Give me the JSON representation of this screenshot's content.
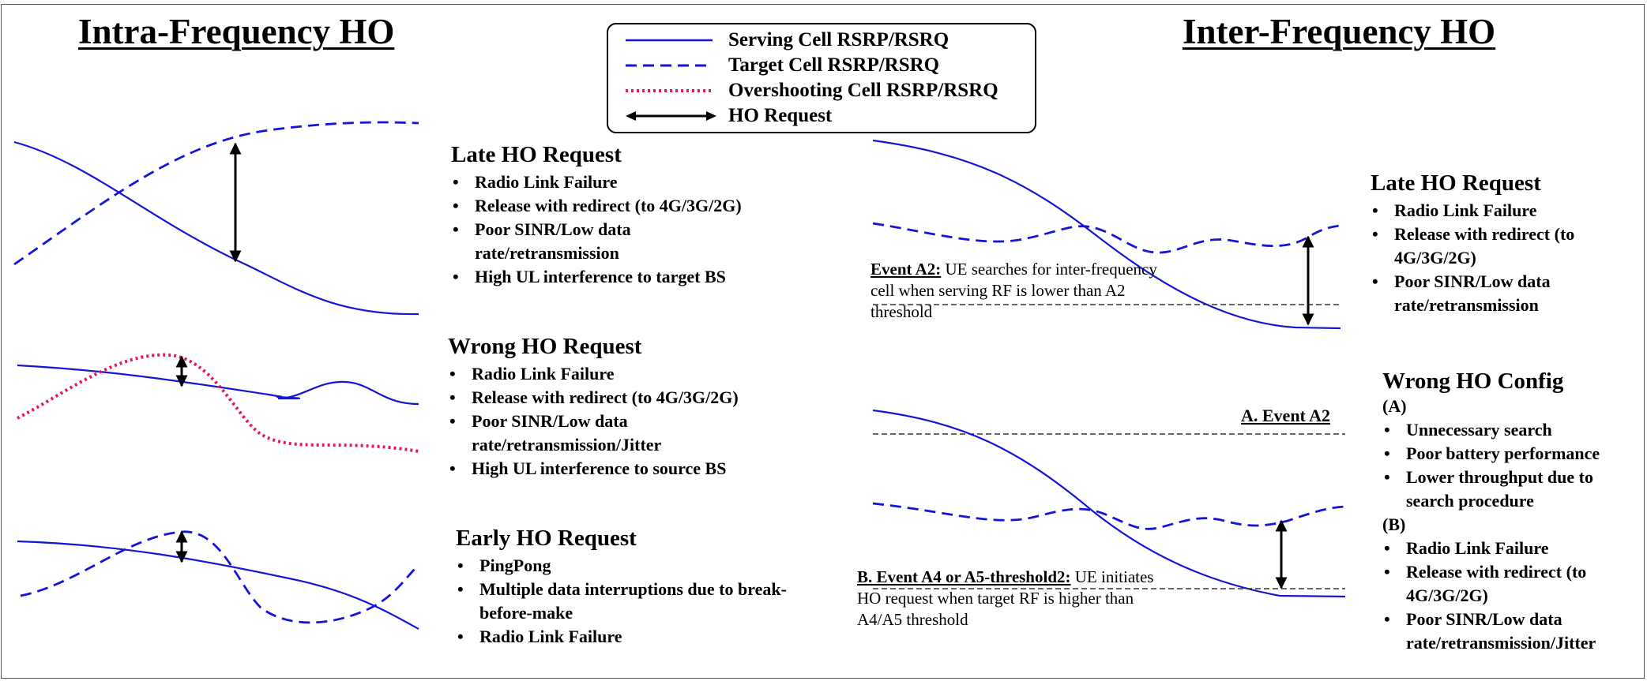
{
  "titles": {
    "intra": "Intra-Frequency HO",
    "inter": "Inter-Frequency HO"
  },
  "legend": {
    "serving": "Serving Cell RSRP/RSRQ",
    "target": "Target Cell RSRP/RSRQ",
    "overshooting": "Overshooting Cell RSRP/RSRQ",
    "ho_request": "HO Request"
  },
  "colors": {
    "serving": "#1515d6",
    "target": "#1515d6",
    "overshooting": "#e8175d",
    "arrow": "#000000",
    "threshold": "#333333"
  },
  "intra": {
    "late": {
      "heading": "Late HO Request",
      "items": [
        "Radio Link Failure",
        "Release with redirect (to 4G/3G/2G)",
        "Poor SINR/Low data rate/retransmission",
        "High UL interference to target BS"
      ]
    },
    "wrong": {
      "heading": "Wrong  HO Request",
      "items": [
        "Radio Link Failure",
        "Release with redirect (to 4G/3G/2G)",
        "Poor SINR/Low data rate/retransmission/Jitter",
        "High UL interference to source BS"
      ]
    },
    "early": {
      "heading": "Early HO Request",
      "items": [
        "PingPong",
        "Multiple data interruptions due to break-before-make",
        "Radio Link Failure"
      ]
    }
  },
  "inter": {
    "late": {
      "heading": "Late HO Request",
      "items": [
        "Radio Link Failure",
        "Release with redirect (to 4G/3G/2G)",
        "Poor SINR/Low data rate/retransmission"
      ]
    },
    "wrong": {
      "heading": "Wrong  HO Config",
      "group_a": "(A)",
      "items_a": [
        "Unnecessary search",
        "Poor battery performance",
        "Lower throughput due to search procedure"
      ],
      "group_b": "(B)",
      "items_b": [
        "Radio Link Failure",
        "Release with redirect (to 4G/3G/2G)",
        "Poor SINR/Low data rate/retransmission/Jitter"
      ]
    },
    "event_a2_note": {
      "label": "Event A2:",
      "text": " UE  searches for inter-frequency cell  when serving RF is lower than A2 threshold"
    },
    "a_event_a2": "A. Event A2",
    "event_b_note": {
      "label": "B. Event A4 or A5-threshold2:",
      "text": " UE initiates HO request when target RF is higher than A4/A5 threshold"
    }
  }
}
